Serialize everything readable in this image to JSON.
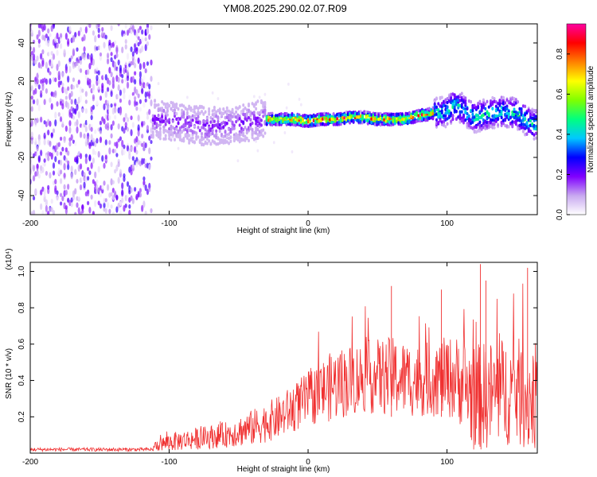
{
  "page": {
    "title": "YM08.2025.290.02.07.R09"
  },
  "chart_data": [
    {
      "type": "heatmap",
      "name": "spectrogram",
      "title": "YM08.2025.290.02.07.R09",
      "xlabel": "Height of straight line (km)",
      "ylabel": "Frequency (Hz)",
      "xlim": [
        -200,
        165
      ],
      "ylim": [
        -50,
        50
      ],
      "xticks": [
        -200,
        -100,
        0,
        100
      ],
      "yticks": [
        -40,
        -20,
        0,
        20,
        40
      ],
      "colorbar": {
        "label": "Normalized spectral amplitude",
        "range": [
          0,
          0.95
        ],
        "ticks": [
          "0.0",
          "0.2",
          "0.4",
          "0.6",
          "0.8"
        ],
        "tick_values": [
          0.0,
          0.2,
          0.4,
          0.6,
          0.8
        ],
        "colors": [
          "#ffffff",
          "#c8a8f0",
          "#8000ff",
          "#0000ff",
          "#00c8ff",
          "#00ff80",
          "#80ff00",
          "#ffff00",
          "#ff8000",
          "#ff0000",
          "#ff00a0"
        ]
      },
      "regions": [
        {
          "x_from": -200,
          "x_to": -112,
          "description": "noise",
          "freq_spread": 50,
          "amplitude": 0.1
        },
        {
          "x_from": -112,
          "x_to": -30,
          "freq_spread": 10,
          "amplitude": 0.2
        },
        {
          "x_from": -30,
          "x_to": 90,
          "freq_spread": 3,
          "amplitude": 0.85
        },
        {
          "x_from": 90,
          "x_to": 165,
          "freq_spread": 8,
          "amplitude": 0.5
        }
      ],
      "center_line": {
        "x": [
          -110,
          -90,
          -70,
          -50,
          -30,
          -10,
          0,
          10,
          20,
          30,
          40,
          50,
          60,
          70,
          80,
          90,
          100,
          105,
          110,
          120,
          130,
          140,
          150,
          160,
          165
        ],
        "y": [
          0,
          -2,
          -4,
          -2,
          0,
          0,
          -1,
          0,
          0,
          1,
          1,
          0,
          0,
          0,
          2,
          3,
          4,
          7,
          6,
          1,
          3,
          4,
          3,
          -2,
          -3
        ]
      }
    },
    {
      "type": "line",
      "name": "snr",
      "xlabel": "Height of straight line (km)",
      "ylabel": "SNR (10 * v/v)",
      "multiplier": "(x10⁴)",
      "xlim": [
        -200,
        165
      ],
      "ylim": [
        0,
        1.05
      ],
      "xticks": [
        -200,
        -100,
        0,
        100
      ],
      "yticks": [
        0.2,
        0.4,
        0.6,
        0.8,
        1.0
      ],
      "ytick_labels": [
        "0.2",
        "0.4",
        "0.6",
        "0.8",
        "1.0"
      ],
      "color": "#f03030",
      "envelope": {
        "x": [
          -200,
          -112,
          -110,
          -100,
          -80,
          -60,
          -40,
          -20,
          0,
          20,
          40,
          60,
          80,
          100,
          110,
          120,
          130,
          140,
          150,
          160,
          165
        ],
        "mean": [
          0.02,
          0.02,
          0.04,
          0.06,
          0.08,
          0.1,
          0.14,
          0.2,
          0.3,
          0.38,
          0.42,
          0.42,
          0.4,
          0.42,
          0.4,
          0.3,
          0.32,
          0.34,
          0.34,
          0.3,
          0.32
        ],
        "spread": [
          0.01,
          0.01,
          0.03,
          0.05,
          0.06,
          0.07,
          0.1,
          0.12,
          0.15,
          0.2,
          0.2,
          0.22,
          0.2,
          0.22,
          0.25,
          0.3,
          0.3,
          0.3,
          0.3,
          0.3,
          0.3
        ]
      },
      "peaks": [
        {
          "x": 60,
          "y": 0.92
        },
        {
          "x": 96,
          "y": 0.9
        },
        {
          "x": 124,
          "y": 1.04
        },
        {
          "x": 128,
          "y": 0.95
        },
        {
          "x": 158,
          "y": 1.02
        }
      ]
    }
  ]
}
